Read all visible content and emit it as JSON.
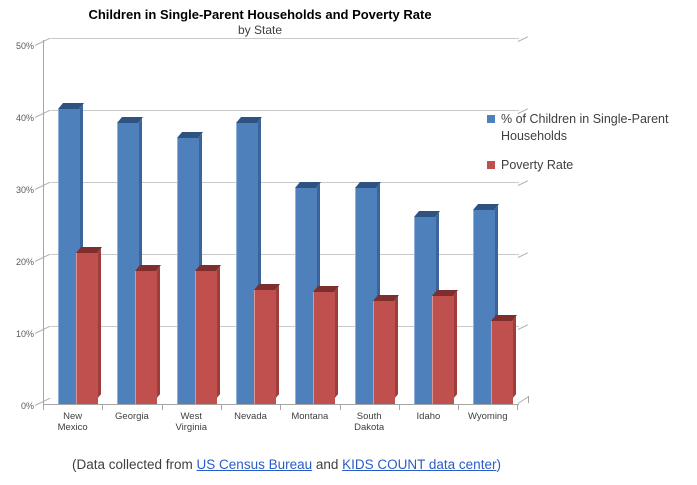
{
  "chart_data": {
    "type": "bar",
    "style": "3d-clustered-column",
    "title": "Children in Single-Parent Households and Poverty Rate",
    "subtitle": "by State",
    "categories": [
      "New Mexico",
      "Georgia",
      "West Virginia",
      "Nevada",
      "Montana",
      "South Dakota",
      "Idaho",
      "Wyoming"
    ],
    "category_label_lines": [
      [
        "New",
        "Mexico"
      ],
      [
        "Georgia"
      ],
      [
        "West",
        "Virginia"
      ],
      [
        "Nevada"
      ],
      [
        "Montana"
      ],
      [
        "South",
        "Dakota"
      ],
      [
        "Idaho"
      ],
      [
        "Wyoming"
      ]
    ],
    "series": [
      {
        "name": "% of Children in Single-Parent Households",
        "values": [
          41,
          39,
          37,
          39,
          30,
          30,
          26,
          27
        ]
      },
      {
        "name": "Poverty Rate",
        "values": [
          21,
          18.5,
          18.5,
          15.8,
          15.5,
          14.3,
          15,
          11.5
        ]
      }
    ],
    "ylim": [
      0,
      50
    ],
    "y_ticks": [
      "0%",
      "10%",
      "20%",
      "30%",
      "40%",
      "50%"
    ],
    "grid": true,
    "legend_position": "right"
  },
  "colors": {
    "series1_front": "#4e80bc",
    "series1_side": "#3a659c",
    "series1_top": "#2f5380",
    "series1_highlight": "#8fb0d8",
    "series2_front": "#c0504d",
    "series2_side": "#9e3d3b",
    "series2_top": "#7e2e2c",
    "series2_highlight": "#d99694",
    "gridline": "#c9c9c9",
    "axis": "#a6a6a6",
    "link": "#2a5cc8"
  },
  "legend": {
    "marker1": "blue-square",
    "marker2": "red-square"
  },
  "footer": {
    "prefix": "(Data collected from ",
    "link1": "US Census Bureau",
    "middle": " and ",
    "link2": "KIDS COUNT data center",
    "suffix": ")"
  }
}
